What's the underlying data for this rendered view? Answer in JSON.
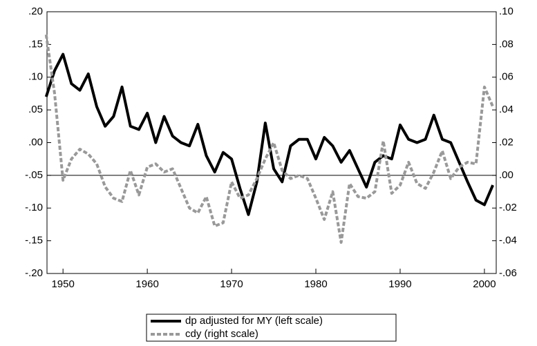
{
  "chart_data": {
    "type": "line",
    "x": [
      1948,
      1949,
      1950,
      1951,
      1952,
      1953,
      1954,
      1955,
      1956,
      1957,
      1958,
      1959,
      1960,
      1961,
      1962,
      1963,
      1964,
      1965,
      1966,
      1967,
      1968,
      1969,
      1970,
      1971,
      1972,
      1973,
      1974,
      1975,
      1976,
      1977,
      1978,
      1979,
      1980,
      1981,
      1982,
      1983,
      1984,
      1985,
      1986,
      1987,
      1988,
      1989,
      1990,
      1991,
      1992,
      1993,
      1994,
      1995,
      1996,
      1997,
      1998,
      1999,
      2000,
      2001
    ],
    "series": [
      {
        "name": "dp adjusted for MY (left scale)",
        "color": "#000000",
        "dash": false,
        "values": [
          0.07,
          0.11,
          0.135,
          0.09,
          0.08,
          0.105,
          0.055,
          0.025,
          0.04,
          0.085,
          0.025,
          0.02,
          0.045,
          0.0,
          0.04,
          0.01,
          0.0,
          -0.005,
          0.028,
          -0.02,
          -0.045,
          -0.015,
          -0.025,
          -0.07,
          -0.11,
          -0.06,
          0.03,
          -0.04,
          -0.06,
          -0.005,
          0.005,
          0.005,
          -0.025,
          0.008,
          -0.005,
          -0.03,
          -0.012,
          -0.04,
          -0.068,
          -0.03,
          -0.02,
          -0.025,
          0.027,
          0.005,
          0.0,
          0.005,
          0.042,
          0.005,
          0.0,
          -0.03,
          -0.06,
          -0.088,
          -0.095,
          -0.065
        ]
      },
      {
        "name": "cdy (right scale)",
        "color": "#999999",
        "dash": true,
        "axis": "y2",
        "values": [
          0.086,
          0.05,
          -0.003,
          0.01,
          0.016,
          0.013,
          0.007,
          -0.007,
          -0.014,
          -0.016,
          0.003,
          -0.012,
          0.005,
          0.007,
          0.002,
          0.004,
          -0.008,
          -0.02,
          -0.023,
          -0.013,
          -0.031,
          -0.029,
          -0.004,
          -0.014,
          -0.012,
          -0.002,
          0.01,
          0.02,
          0.003,
          -0.002,
          0.0,
          -0.002,
          -0.014,
          -0.027,
          -0.01,
          -0.041,
          -0.005,
          -0.013,
          -0.014,
          -0.01,
          0.021,
          -0.011,
          -0.006,
          0.008,
          -0.005,
          -0.008,
          0.002,
          0.015,
          -0.002,
          0.005,
          0.008,
          0.007,
          0.054,
          0.042
        ]
      }
    ],
    "xlim": [
      1948.1,
      2001.4
    ],
    "xticks": [
      1950,
      1960,
      1970,
      1980,
      1990,
      2000
    ],
    "ylim": [
      -0.2,
      0.2
    ],
    "yticks": [
      {
        "value": -0.2,
        "label": "-.20"
      },
      {
        "value": -0.15,
        "label": "-.15"
      },
      {
        "value": -0.1,
        "label": "-.10"
      },
      {
        "value": -0.05,
        "label": "-.05"
      },
      {
        "value": 0,
        "label": ".00"
      },
      {
        "value": 0.05,
        "label": ".05"
      },
      {
        "value": 0.1,
        "label": ".10"
      },
      {
        "value": 0.15,
        "label": ".15"
      },
      {
        "value": 0.2,
        "label": ".20"
      }
    ],
    "y2lim": [
      -0.06,
      0.1
    ],
    "y2ticks": [
      {
        "value": -0.06,
        "label": "-.06"
      },
      {
        "value": -0.04,
        "label": "-.04"
      },
      {
        "value": -0.02,
        "label": "-.02"
      },
      {
        "value": 0,
        "label": ".00"
      },
      {
        "value": 0.02,
        "label": ".02"
      },
      {
        "value": 0.04,
        "label": ".04"
      },
      {
        "value": 0.06,
        "label": ".06"
      },
      {
        "value": 0.08,
        "label": ".08"
      },
      {
        "value": 0.1,
        "label": ".10"
      }
    ],
    "legend": "bottom"
  }
}
